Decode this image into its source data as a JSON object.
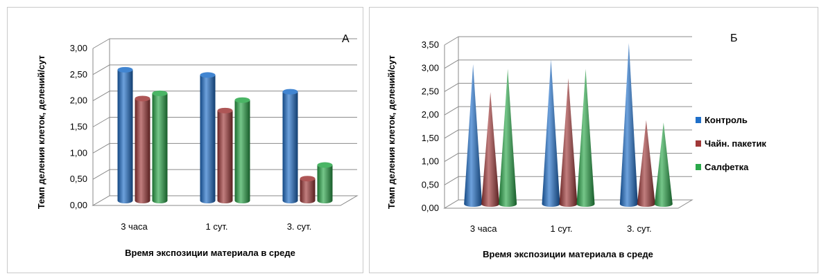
{
  "chart_data": [
    {
      "type": "bar",
      "style": "3d-cylinder",
      "panel_label": "А",
      "categories": [
        "3 часа",
        "1 сут.",
        "3. сут."
      ],
      "series": [
        {
          "name": "Контроль",
          "color": "#1f6fc9",
          "values": [
            2.5,
            2.4,
            2.08
          ]
        },
        {
          "name": "Чайн. пакетик",
          "color": "#a03838",
          "values": [
            1.95,
            1.72,
            0.42
          ]
        },
        {
          "name": "Салфетка",
          "color": "#2aa84a",
          "values": [
            2.05,
            1.92,
            0.68
          ]
        }
      ],
      "yticks": [
        "0,00",
        "0,50",
        "1,00",
        "1,50",
        "2,00",
        "2,50",
        "3,00"
      ],
      "ylim": [
        0,
        3
      ],
      "xlabel": "Время экспозиции  материала в среде",
      "ylabel": "Темп деления клеток, делений/сут",
      "grid": true
    },
    {
      "type": "bar",
      "style": "3d-cone",
      "panel_label": "Б",
      "categories": [
        "3 часа",
        "1 сут.",
        "3. сут."
      ],
      "series": [
        {
          "name": "Контроль",
          "color": "#1f6fc9",
          "values": [
            3.0,
            3.1,
            3.45
          ]
        },
        {
          "name": "Чайн. пакетик",
          "color": "#a03838",
          "values": [
            2.4,
            2.7,
            1.8
          ]
        },
        {
          "name": "Салфетка",
          "color": "#2aa84a",
          "values": [
            2.9,
            2.9,
            1.75
          ]
        }
      ],
      "yticks": [
        "0,00",
        "0,50",
        "1,00",
        "1,50",
        "2,00",
        "2,50",
        "3,00",
        "3,50"
      ],
      "ylim": [
        0,
        3.5
      ],
      "xlabel": "Время экспозиции  материала в среде",
      "ylabel": "Темп деления клеток, делений/сут",
      "grid": true,
      "legend": [
        "Контроль",
        "Чайн. пакетик",
        "Салфетка"
      ],
      "legend_position": "right"
    }
  ]
}
